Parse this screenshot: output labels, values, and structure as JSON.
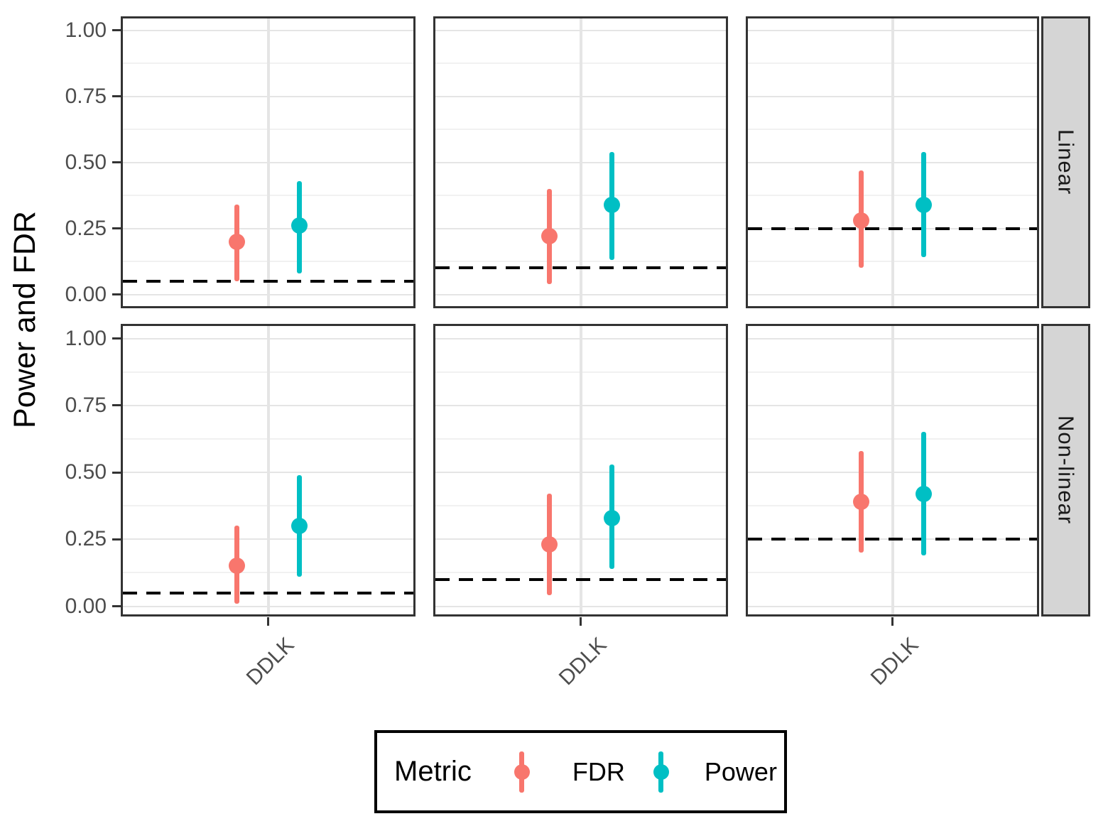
{
  "chart_data": {
    "type": "pointrange",
    "ylabel": "Power and FDR",
    "x_categories": [
      "DDLK"
    ],
    "facet_rows": [
      "Linear",
      "Non-linear"
    ],
    "ylim": [
      0,
      1
    ],
    "y_major_ticks": [
      0.0,
      0.25,
      0.5,
      0.75,
      1.0
    ],
    "y_minor_ticks": [
      0.125,
      0.375,
      0.625,
      0.875
    ],
    "y_tick_labels": [
      "0.00",
      "0.25",
      "0.50",
      "0.75",
      "1.00"
    ],
    "grid": "on",
    "legend_position": "bottom",
    "panels": [
      {
        "facet_row": "Linear",
        "col": 0,
        "x_category": "DDLK",
        "dashed_line": 0.05,
        "points": [
          {
            "metric": "FDR",
            "y": 0.2,
            "ymin": 0.05,
            "ymax": 0.34
          },
          {
            "metric": "Power",
            "y": 0.26,
            "ymin": 0.08,
            "ymax": 0.43
          }
        ]
      },
      {
        "facet_row": "Linear",
        "col": 1,
        "x_category": "DDLK",
        "dashed_line": 0.1,
        "points": [
          {
            "metric": "FDR",
            "y": 0.22,
            "ymin": 0.04,
            "ymax": 0.4
          },
          {
            "metric": "Power",
            "y": 0.34,
            "ymin": 0.13,
            "ymax": 0.54
          }
        ]
      },
      {
        "facet_row": "Linear",
        "col": 2,
        "x_category": "DDLK",
        "dashed_line": 0.25,
        "points": [
          {
            "metric": "FDR",
            "y": 0.28,
            "ymin": 0.1,
            "ymax": 0.47
          },
          {
            "metric": "Power",
            "y": 0.34,
            "ymin": 0.14,
            "ymax": 0.54
          }
        ]
      },
      {
        "facet_row": "Non-linear",
        "col": 0,
        "x_category": "DDLK",
        "dashed_line": 0.05,
        "points": [
          {
            "metric": "FDR",
            "y": 0.15,
            "ymin": 0.01,
            "ymax": 0.3
          },
          {
            "metric": "Power",
            "y": 0.3,
            "ymin": 0.11,
            "ymax": 0.49
          }
        ]
      },
      {
        "facet_row": "Non-linear",
        "col": 1,
        "x_category": "DDLK",
        "dashed_line": 0.1,
        "points": [
          {
            "metric": "FDR",
            "y": 0.23,
            "ymin": 0.04,
            "ymax": 0.42
          },
          {
            "metric": "Power",
            "y": 0.33,
            "ymin": 0.14,
            "ymax": 0.53
          }
        ]
      },
      {
        "facet_row": "Non-linear",
        "col": 2,
        "x_category": "DDLK",
        "dashed_line": 0.25,
        "points": [
          {
            "metric": "FDR",
            "y": 0.39,
            "ymin": 0.2,
            "ymax": 0.58
          },
          {
            "metric": "Power",
            "y": 0.42,
            "ymin": 0.19,
            "ymax": 0.65
          }
        ]
      }
    ],
    "legend": {
      "title": "Metric",
      "entries": [
        {
          "label": "FDR",
          "color": "#F8766D"
        },
        {
          "label": "Power",
          "color": "#00BFC4"
        }
      ]
    },
    "colors": {
      "fdr": "#F8766D",
      "power": "#00BFC4",
      "grid_major": "#E5E5E5",
      "grid_minor": "#F1F1F1",
      "panel_border": "#333333",
      "strip_bg": "#D5D5D5",
      "dashed_line": "#000000",
      "tick_text": "#4D4D4D"
    }
  }
}
